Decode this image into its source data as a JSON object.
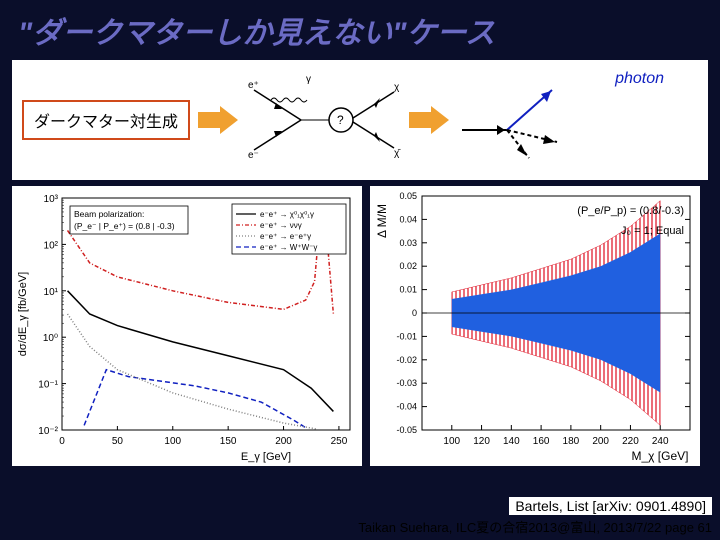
{
  "title": "\"ダークマターしか見えない\"ケース",
  "dm_label": "ダークマター対生成",
  "photon_label": "photon",
  "feyn1": {
    "labels": {
      "ep": "e⁺",
      "em": "e⁻",
      "g": "γ",
      "chi": "χ",
      "chib": "χ̄",
      "q": "?"
    },
    "colors": {
      "line": "#000000",
      "wavy": "#000000"
    }
  },
  "feyn2": {
    "colors": {
      "initial": "#000000",
      "photon": "#1020c0",
      "dash": "#000000"
    }
  },
  "chart_left": {
    "type": "line-log",
    "xlim": [
      0,
      260
    ],
    "xtick_step": 50,
    "ylim_exp": [
      -2,
      3
    ],
    "ytick_exp_step": 1,
    "xlabel": "E_γ [GeV]",
    "ylabel": "dσ/dE_γ [fb/GeV]",
    "polarization_box": {
      "lines": [
        "Beam polarization:",
        "(P_e⁻ | P_e⁺) = (0.8 | -0.3)"
      ]
    },
    "legend": [
      {
        "label": "e⁻e⁺ → χ⁰₁χ⁰₁γ",
        "color": "#000000",
        "dash": "solid"
      },
      {
        "label": "e⁻e⁺ → ννγ",
        "color": "#d02020",
        "dash": "dashdot"
      },
      {
        "label": "e⁻e⁺ → e⁻e⁺γ",
        "color": "#808080",
        "dash": "dotted"
      },
      {
        "label": "e⁻e⁺ → W⁺W⁻γ",
        "color": "#1020c0",
        "dash": "dashed"
      }
    ],
    "series": {
      "red": {
        "color": "#d02020",
        "dash": "4 2 1 2",
        "pts": [
          [
            5,
            2.3
          ],
          [
            25,
            1.6
          ],
          [
            50,
            1.3
          ],
          [
            100,
            1.0
          ],
          [
            150,
            0.75
          ],
          [
            200,
            0.6
          ],
          [
            220,
            0.8
          ],
          [
            228,
            1.2
          ],
          [
            232,
            2.3
          ],
          [
            236,
            2.7
          ],
          [
            238,
            2.5
          ],
          [
            245,
            0.5
          ]
        ]
      },
      "black": {
        "color": "#000000",
        "dash": "none",
        "pts": [
          [
            5,
            1.0
          ],
          [
            25,
            0.5
          ],
          [
            50,
            0.25
          ],
          [
            100,
            -0.1
          ],
          [
            150,
            -0.4
          ],
          [
            200,
            -0.7
          ],
          [
            225,
            -1.1
          ],
          [
            245,
            -1.6
          ]
        ]
      },
      "blue": {
        "color": "#1020c0",
        "dash": "5 3",
        "pts": [
          [
            20,
            -1.9
          ],
          [
            40,
            -0.7
          ],
          [
            60,
            -0.85
          ],
          [
            90,
            -0.95
          ],
          [
            120,
            -1.05
          ],
          [
            150,
            -1.2
          ],
          [
            180,
            -1.4
          ],
          [
            210,
            -1.8
          ],
          [
            220,
            -1.95
          ]
        ]
      },
      "grey": {
        "color": "#808080",
        "dash": "1 2",
        "pts": [
          [
            5,
            0.5
          ],
          [
            25,
            -0.2
          ],
          [
            50,
            -0.7
          ],
          [
            100,
            -1.2
          ],
          [
            150,
            -1.55
          ],
          [
            200,
            -1.85
          ],
          [
            230,
            -1.98
          ]
        ]
      }
    },
    "grid_color": "#cccccc",
    "background_color": "#ffffff"
  },
  "chart_right": {
    "type": "band",
    "xlim": [
      80,
      260
    ],
    "xticks": [
      100,
      120,
      140,
      160,
      180,
      200,
      220,
      240
    ],
    "ylim": [
      -0.05,
      0.05
    ],
    "yticks": [
      -0.05,
      -0.04,
      -0.03,
      -0.02,
      -0.01,
      0,
      0.01,
      0.02,
      0.03,
      0.04,
      0.05
    ],
    "xlabel": "M_χ [GeV]",
    "ylabel": "Δ M/M",
    "annot1": "(P_e/P_p) = (0.8/-0.3)",
    "annot2": "J₀ = 1; Equal",
    "band_outer": {
      "color": "#e02030",
      "upper": [
        [
          100,
          0.009
        ],
        [
          120,
          0.012
        ],
        [
          140,
          0.015
        ],
        [
          160,
          0.019
        ],
        [
          180,
          0.023
        ],
        [
          200,
          0.029
        ],
        [
          220,
          0.037
        ],
        [
          240,
          0.048
        ]
      ],
      "lower": [
        [
          100,
          -0.009
        ],
        [
          120,
          -0.012
        ],
        [
          140,
          -0.015
        ],
        [
          160,
          -0.019
        ],
        [
          180,
          -0.023
        ],
        [
          200,
          -0.029
        ],
        [
          220,
          -0.037
        ],
        [
          240,
          -0.048
        ]
      ]
    },
    "band_inner": {
      "color": "#2060e0",
      "upper": [
        [
          100,
          0.006
        ],
        [
          120,
          0.008
        ],
        [
          140,
          0.01
        ],
        [
          160,
          0.013
        ],
        [
          180,
          0.016
        ],
        [
          200,
          0.02
        ],
        [
          220,
          0.026
        ],
        [
          240,
          0.034
        ]
      ],
      "lower": [
        [
          100,
          -0.006
        ],
        [
          120,
          -0.008
        ],
        [
          140,
          -0.01
        ],
        [
          160,
          -0.013
        ],
        [
          180,
          -0.016
        ],
        [
          200,
          -0.02
        ],
        [
          220,
          -0.026
        ],
        [
          240,
          -0.034
        ]
      ]
    },
    "background_color": "#ffffff",
    "axis_color": "#000000"
  },
  "citation": "Bartels, List [arXiv: 0901.4890]",
  "footer": "Taikan Suehara, ILC夏の合宿2013@富山, 2013/7/22  page 61"
}
